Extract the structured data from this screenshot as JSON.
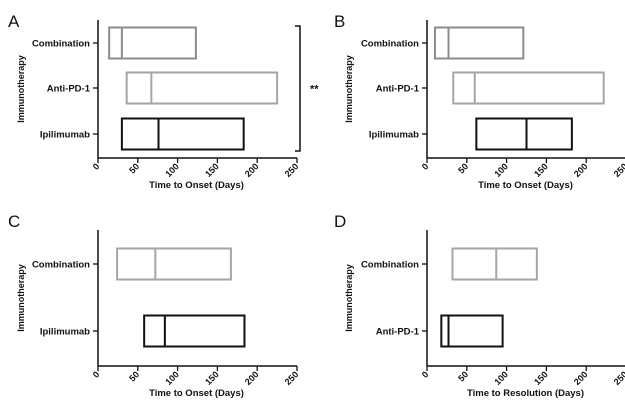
{
  "chart_data": [
    {
      "panel": "A",
      "type": "box",
      "ylabel": "Immunotherapy",
      "xlabel": "Time to Onset (Days)",
      "xlim": [
        0,
        250
      ],
      "xticks": [
        "0",
        "50",
        "100",
        "150",
        "200",
        "250"
      ],
      "categories": [
        "Combination",
        "Anti-PD-1",
        "Ipilimumab"
      ],
      "boxes": [
        {
          "category": "Combination",
          "q1": 14,
          "median": 30,
          "q3": 123,
          "color": "#8c8c8c"
        },
        {
          "category": "Anti-PD-1",
          "q1": 36,
          "median": 67,
          "q3": 225,
          "color": "#a6a6a6"
        },
        {
          "category": "Ipilimumab",
          "q1": 30,
          "median": 76,
          "q3": 183,
          "color": "#111111"
        }
      ],
      "significance": {
        "label": "**",
        "from": "Combination",
        "to": "Ipilimumab"
      }
    },
    {
      "panel": "B",
      "type": "box",
      "ylabel": "Immunotherapy",
      "xlabel": "Time to Onset (Days)",
      "xlim": [
        0,
        250
      ],
      "xticks": [
        "0",
        "50",
        "100",
        "150",
        "200",
        "250"
      ],
      "categories": [
        "Combination",
        "Anti-PD-1",
        "Ipilimumab"
      ],
      "boxes": [
        {
          "category": "Combination",
          "q1": 10,
          "median": 27,
          "q3": 121,
          "color": "#8c8c8c"
        },
        {
          "category": "Anti-PD-1",
          "q1": 33,
          "median": 60,
          "q3": 222,
          "color": "#a6a6a6"
        },
        {
          "category": "Ipilimumab",
          "q1": 62,
          "median": 125,
          "q3": 182,
          "color": "#111111"
        }
      ]
    },
    {
      "panel": "C",
      "type": "box",
      "ylabel": "Immunotherapy",
      "xlabel": "Time to Onset (Days)",
      "xlim": [
        0,
        250
      ],
      "xticks": [
        "0",
        "50",
        "100",
        "150",
        "200",
        "250"
      ],
      "categories": [
        "Combination",
        "Ipilimumab"
      ],
      "boxes": [
        {
          "category": "Combination",
          "q1": 24,
          "median": 72,
          "q3": 167,
          "color": "#a6a6a6"
        },
        {
          "category": "Ipilimumab",
          "q1": 58,
          "median": 84,
          "q3": 184,
          "color": "#111111"
        }
      ]
    },
    {
      "panel": "D",
      "type": "box",
      "ylabel": "Immunotherapy",
      "xlabel": "Time to Resolution (Days)",
      "xlim": [
        0,
        250
      ],
      "xticks": [
        "0",
        "50",
        "100",
        "150",
        "200",
        "250"
      ],
      "categories": [
        "Combination",
        "Anti-PD-1"
      ],
      "boxes": [
        {
          "category": "Combination",
          "q1": 32,
          "median": 87,
          "q3": 138,
          "color": "#a6a6a6"
        },
        {
          "category": "Anti-PD-1",
          "q1": 18,
          "median": 27,
          "q3": 95,
          "color": "#111111"
        }
      ]
    }
  ]
}
